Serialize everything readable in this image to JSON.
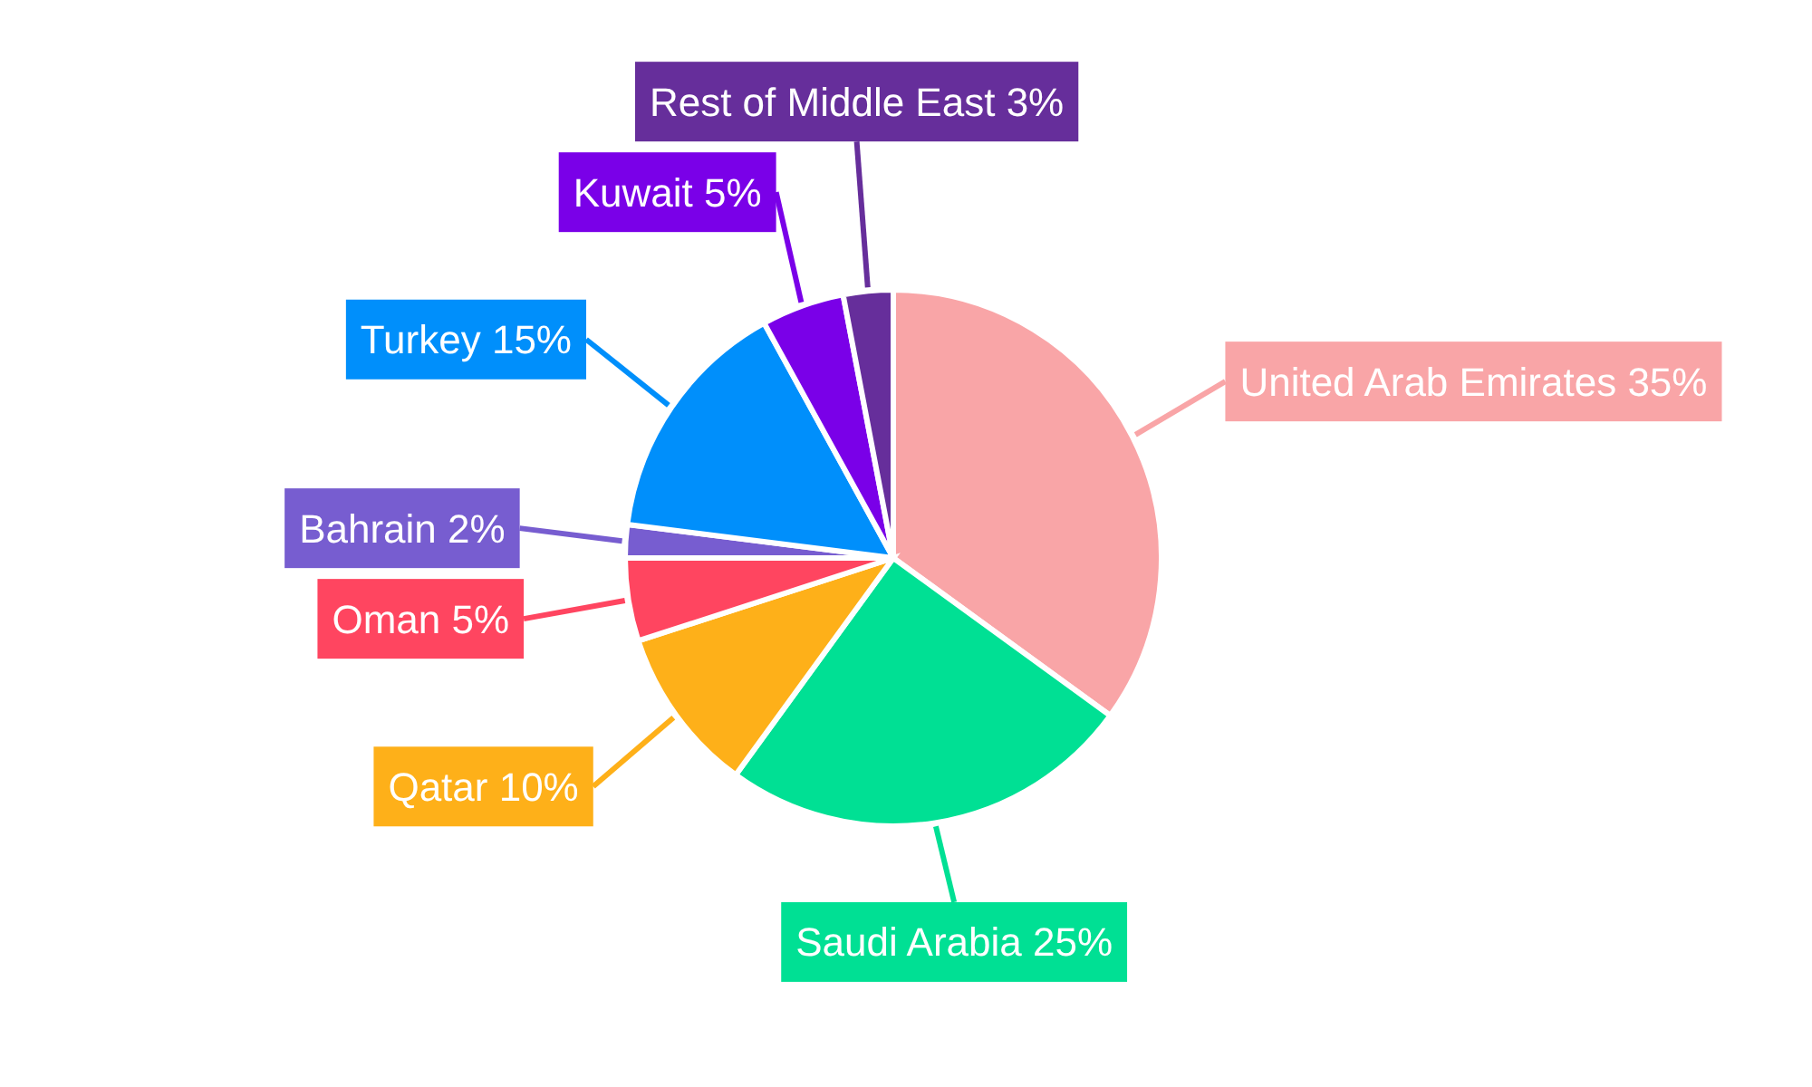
{
  "chart_data": {
    "type": "pie",
    "categories": [
      "United Arab Emirates",
      "Saudi Arabia",
      "Qatar",
      "Oman",
      "Bahrain",
      "Turkey",
      "Kuwait",
      "Rest of Middle East"
    ],
    "values": [
      35,
      25,
      10,
      5,
      2,
      15,
      5,
      3
    ],
    "value_labels": [
      "35%",
      "25%",
      "10%",
      "5%",
      "2%",
      "15%",
      "5%",
      "3%"
    ],
    "colors": [
      "#f9a5a7",
      "#00e094",
      "#feb019",
      "#ff4560",
      "#775dd0",
      "#008ffb",
      "#7a00e8",
      "#662e9b"
    ]
  }
}
